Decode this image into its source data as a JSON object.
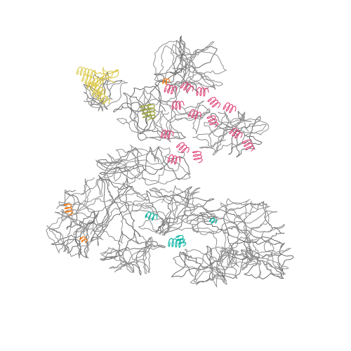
{
  "image": {
    "subject": "",
    "background_color": "#ffffff"
  },
  "palette": {
    "backbone": "#8f8f8f",
    "backbone_dark": "#6b6b6b",
    "pink_region": "#e0457a",
    "yellow_region": "#dcc94a",
    "olive_region": "#9aa23a",
    "orange_region": "#f07f1f",
    "teal_region": "#15b7a6"
  }
}
